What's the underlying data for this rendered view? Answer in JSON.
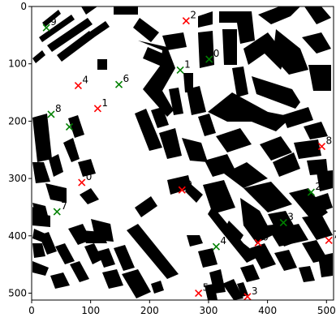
{
  "chart_data": {
    "type": "scatter",
    "title": "",
    "xlabel": "",
    "ylabel": "",
    "xlim": [
      0,
      512
    ],
    "ylim": [
      512,
      0
    ],
    "y_inverted": true,
    "background": "binary map: black building footprints on white",
    "xticks": [
      0,
      100,
      200,
      300,
      400,
      500
    ],
    "yticks": [
      0,
      100,
      200,
      300,
      400,
      500
    ],
    "grid": false,
    "legend": "none",
    "series": [
      {
        "color": "#ff0000",
        "marker": "x",
        "points": [
          {
            "label": "0",
            "x": 85,
            "y": 307
          },
          {
            "label": "1",
            "x": 112,
            "y": 178
          },
          {
            "label": "2",
            "x": 262,
            "y": 25
          },
          {
            "label": "3",
            "x": 366,
            "y": 506
          },
          {
            "label": "4",
            "x": 79,
            "y": 138
          },
          {
            "label": "5",
            "x": 283,
            "y": 500
          },
          {
            "label": "6",
            "x": 384,
            "y": 412
          },
          {
            "label": "7",
            "x": 504,
            "y": 408
          },
          {
            "label": "8",
            "x": 492,
            "y": 244
          },
          {
            "label": "9",
            "x": 255,
            "y": 320
          }
        ]
      },
      {
        "color": "#008000",
        "marker": "x",
        "points": [
          {
            "label": "0",
            "x": 301,
            "y": 92
          },
          {
            "label": "1",
            "x": 252,
            "y": 111
          },
          {
            "label": "2",
            "x": 474,
            "y": 324
          },
          {
            "label": "3",
            "x": 427,
            "y": 377
          },
          {
            "label": "4",
            "x": 313,
            "y": 419
          },
          {
            "label": "5",
            "x": 64,
            "y": 210
          },
          {
            "label": "6",
            "x": 148,
            "y": 136
          },
          {
            "label": "7",
            "x": 43,
            "y": 358
          },
          {
            "label": "8",
            "x": 33,
            "y": 188
          },
          {
            "label": "9",
            "x": 25,
            "y": 37
          }
        ]
      }
    ]
  }
}
